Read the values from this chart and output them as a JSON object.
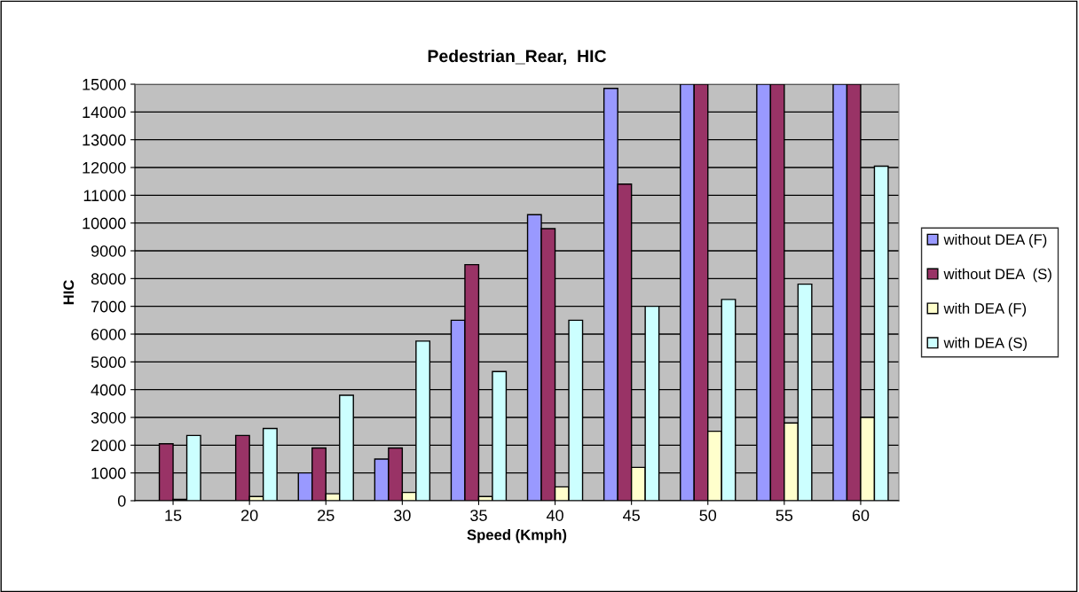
{
  "chart_data": {
    "type": "bar",
    "title": "Pedestrian_Rear,  HIC",
    "xlabel": "Speed (Kmph)",
    "ylabel": "HIC",
    "categories": [
      "15",
      "20",
      "25",
      "30",
      "35",
      "40",
      "45",
      "50",
      "55",
      "60"
    ],
    "series": [
      {
        "name": "without DEA (F)",
        "color": "#9999ff",
        "values": [
          null,
          null,
          1000,
          1500,
          6500,
          10300,
          14850,
          15000,
          15000,
          15000
        ]
      },
      {
        "name": "without DEA  (S)",
        "color": "#993366",
        "values": [
          2050,
          2350,
          1900,
          1900,
          8500,
          9800,
          11400,
          15000,
          15000,
          15000
        ]
      },
      {
        "name": "with DEA (F)",
        "color": "#ffffcc",
        "values": [
          50,
          150,
          250,
          300,
          150,
          500,
          1200,
          2500,
          2800,
          3000
        ]
      },
      {
        "name": "with DEA (S)",
        "color": "#ccffff",
        "values": [
          2350,
          2600,
          3800,
          5750,
          4650,
          6500,
          7000,
          7250,
          7800,
          12050
        ]
      }
    ],
    "ylim": [
      0,
      15000
    ],
    "yticks": [
      0,
      1000,
      2000,
      3000,
      4000,
      5000,
      6000,
      7000,
      8000,
      9000,
      10000,
      11000,
      12000,
      13000,
      14000,
      15000
    ],
    "grid": "y",
    "legend": "right"
  }
}
